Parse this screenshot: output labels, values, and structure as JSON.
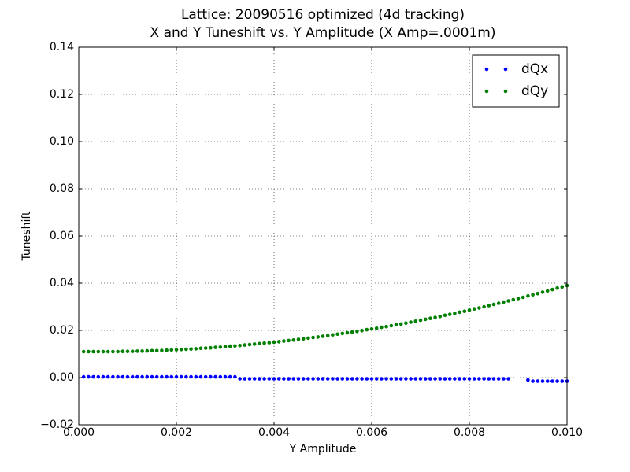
{
  "chart_data": {
    "type": "scatter",
    "title": "Lattice: 20090516 optimized (4d tracking)",
    "subtitle": "X and Y Tuneshift vs. Y Amplitude (X Amp=.0001m)",
    "x_label": "Y Amplitude",
    "y_label": "Tuneshift",
    "xlim": [
      0,
      0.01
    ],
    "ylim": [
      -0.02,
      0.14
    ],
    "xticks": [
      {
        "value": 0,
        "label": "0.000"
      },
      {
        "value": 0.002,
        "label": "0.002"
      },
      {
        "value": 0.004,
        "label": "0.004"
      },
      {
        "value": 0.006,
        "label": "0.006"
      },
      {
        "value": 0.008,
        "label": "0.008"
      },
      {
        "value": 0.01,
        "label": "0.010"
      }
    ],
    "yticks": [
      {
        "value": -0.02,
        "label": "−0.02"
      },
      {
        "value": 0,
        "label": "0.00"
      },
      0.02,
      0.04,
      0.06,
      0.08,
      {
        "value": 0.1,
        "label": "0.10"
      },
      0.12,
      0.14
    ],
    "grid": true,
    "legend": "upper right",
    "x": [
      0.0001,
      0.0002,
      0.0003,
      0.0004,
      0.0005,
      0.0006,
      0.0007,
      0.0008,
      0.0009,
      0.001,
      0.0011,
      0.0012,
      0.0013,
      0.0014,
      0.0015,
      0.0016,
      0.0017,
      0.0018,
      0.0019,
      0.002,
      0.0021,
      0.0022,
      0.0023,
      0.0024,
      0.0025,
      0.0026,
      0.0027,
      0.0028,
      0.0029,
      0.003,
      0.0031,
      0.0032,
      0.0033,
      0.0034,
      0.0035,
      0.0036,
      0.0037,
      0.0038,
      0.0039,
      0.004,
      0.0041,
      0.0042,
      0.0043,
      0.0044,
      0.0045,
      0.0046,
      0.0047,
      0.0048,
      0.0049,
      0.005,
      0.0051,
      0.0052,
      0.0053,
      0.0054,
      0.0055,
      0.0056,
      0.0057,
      0.0058,
      0.0059,
      0.006,
      0.0061,
      0.0062,
      0.0063,
      0.0064,
      0.0065,
      0.0066,
      0.0067,
      0.0068,
      0.0069,
      0.007,
      0.0071,
      0.0072,
      0.0073,
      0.0074,
      0.0075,
      0.0076,
      0.0077,
      0.0078,
      0.0079,
      0.008,
      0.0081,
      0.0082,
      0.0083,
      0.0084,
      0.0085,
      0.0086,
      0.0087,
      0.0088,
      0.0089,
      0.009,
      0.0091,
      0.0092,
      0.0093,
      0.0094,
      0.0095,
      0.0096,
      0.0097,
      0.0098,
      0.0099,
      0.01
    ],
    "series": [
      {
        "name": "dQx",
        "color": "#0000ff",
        "values": [
          0.0003,
          0.0003,
          0.0003,
          0.0003,
          0.0003,
          0.0003,
          0.0003,
          0.0003,
          0.0003,
          0.0003,
          0.0003,
          0.0003,
          0.0003,
          0.0003,
          0.0003,
          0.0003,
          0.0003,
          0.0003,
          0.0003,
          0.0003,
          0.0003,
          0.0003,
          0.0003,
          0.0003,
          0.0003,
          0.0003,
          0.0003,
          0.0003,
          0.0003,
          0.0003,
          0.0003,
          0.0003,
          -0.0005,
          -0.0005,
          -0.0005,
          -0.0005,
          -0.0005,
          -0.0005,
          -0.0005,
          -0.0005,
          -0.0005,
          -0.0005,
          -0.0005,
          -0.0005,
          -0.0005,
          -0.0005,
          -0.0005,
          -0.0005,
          -0.0005,
          -0.0005,
          -0.0005,
          -0.0005,
          -0.0005,
          -0.0005,
          -0.0005,
          -0.0005,
          -0.0005,
          -0.0005,
          -0.0005,
          -0.0005,
          -0.0005,
          -0.0005,
          -0.0005,
          -0.0005,
          -0.0005,
          -0.0005,
          -0.0005,
          -0.0005,
          -0.0005,
          -0.0005,
          -0.0005,
          -0.0005,
          -0.0005,
          -0.0005,
          -0.0005,
          -0.0005,
          -0.0005,
          -0.0005,
          -0.0005,
          -0.0005,
          -0.0005,
          -0.0005,
          -0.0005,
          -0.0005,
          -0.0005,
          -0.0005,
          -0.0005,
          -0.0005,
          null,
          null,
          null,
          -0.001,
          -0.0015,
          -0.0015,
          -0.0015,
          -0.0015,
          -0.0015,
          -0.0015,
          -0.0015,
          -0.0015
        ]
      },
      {
        "name": "dQy",
        "color": "#008000",
        "values": [
          0.011,
          0.011,
          0.011,
          0.011,
          0.011,
          0.011,
          0.011,
          0.011,
          0.0111,
          0.0111,
          0.0111,
          0.0112,
          0.0112,
          0.0113,
          0.0114,
          0.0114,
          0.0115,
          0.0116,
          0.0117,
          0.0118,
          0.0119,
          0.012,
          0.0121,
          0.0122,
          0.0124,
          0.0125,
          0.0126,
          0.0128,
          0.0129,
          0.0131,
          0.0133,
          0.0134,
          0.0136,
          0.0138,
          0.014,
          0.0142,
          0.0144,
          0.0146,
          0.0148,
          0.015,
          0.0152,
          0.0155,
          0.0157,
          0.0159,
          0.0162,
          0.0164,
          0.0167,
          0.017,
          0.0172,
          0.0175,
          0.0178,
          0.0181,
          0.0184,
          0.0187,
          0.019,
          0.0193,
          0.0196,
          0.0199,
          0.0203,
          0.0206,
          0.0209,
          0.0213,
          0.0216,
          0.022,
          0.0224,
          0.0227,
          0.0231,
          0.0235,
          0.0239,
          0.0243,
          0.0247,
          0.0251,
          0.0255,
          0.0259,
          0.0264,
          0.0268,
          0.0272,
          0.0277,
          0.0281,
          0.0286,
          0.0291,
          0.0295,
          0.03,
          0.0305,
          0.031,
          0.0315,
          0.032,
          0.0325,
          0.033,
          0.0335,
          0.034,
          0.0346,
          0.0351,
          0.0356,
          0.0362,
          0.0367,
          0.0373,
          0.0379,
          0.0384,
          0.039
        ]
      }
    ]
  }
}
